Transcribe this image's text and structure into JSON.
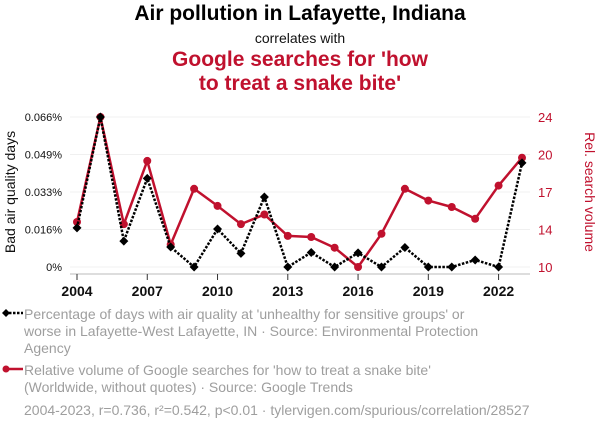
{
  "header": {
    "title": "Air pollution in Lafayette, Indiana",
    "subtitle": "correlates with",
    "title2_line1": "Google searches for 'how",
    "title2_line2": "to treat a snake bite'"
  },
  "colors": {
    "series1": "#000000",
    "series2": "#c0112e",
    "legend_text": "#9e9e9e"
  },
  "legend": {
    "series1": "Percentage of days with air quality at 'unhealthy for sensitive groups' or worse in Lafayette-West Lafayette, IN · Source: Environmental Protection Agency",
    "series2": "Relative volume of Google searches for 'how to treat a snake bite' (Worldwide, without quotes) · Source: Google Trends"
  },
  "footer": "2004-2023, r=0.736, r²=0.542, p<0.01 · tylervigen.com/spurious/correlation/28527",
  "chart_data": {
    "type": "line",
    "title": "Air pollution in Lafayette, Indiana correlates with Google searches for 'how to treat a snake bite'",
    "x": [
      2004,
      2005,
      2006,
      2007,
      2008,
      2009,
      2010,
      2011,
      2012,
      2013,
      2014,
      2015,
      2016,
      2017,
      2018,
      2019,
      2020,
      2021,
      2022,
      2023
    ],
    "x_ticks": [
      2004,
      2007,
      2010,
      2013,
      2016,
      2019,
      2022
    ],
    "xlim": [
      2004,
      2023
    ],
    "ylabel": "Bad air quality days",
    "y2label": "Rel. search volume",
    "ylim": [
      0,
      0.066
    ],
    "y_ticks": [
      "0%",
      "0.016%",
      "0.033%",
      "0.049%",
      "0.066%"
    ],
    "y2lim": [
      10,
      24
    ],
    "y2_ticks": [
      "10",
      "14",
      "17",
      "20",
      "24"
    ],
    "grid": true,
    "legend_position": "bottom",
    "series": [
      {
        "name": "Percentage of days with air quality at 'unhealthy for sensitive groups' or worse in Lafayette-West Lafayette, IN",
        "axis": "left",
        "unit": "%",
        "style": "dotted",
        "marker": "diamond",
        "values": [
          0.0172,
          0.066,
          0.0114,
          0.039,
          0.0088,
          0,
          0.0167,
          0.006,
          0.0308,
          0,
          0.0064,
          0,
          0.0062,
          0,
          0.0086,
          0,
          0,
          0.0031,
          0,
          0.0458
        ]
      },
      {
        "name": "Relative volume of Google searches for 'how to treat a snake bite'",
        "axis": "right",
        "style": "solid",
        "marker": "circle",
        "values": [
          14.2,
          24,
          14.0,
          19.9,
          12.1,
          17.3,
          15.7,
          14.0,
          14.9,
          12.9,
          12.8,
          11.8,
          10,
          13.1,
          17.3,
          16.2,
          15.6,
          14.5,
          17.6,
          20.2
        ]
      }
    ]
  }
}
